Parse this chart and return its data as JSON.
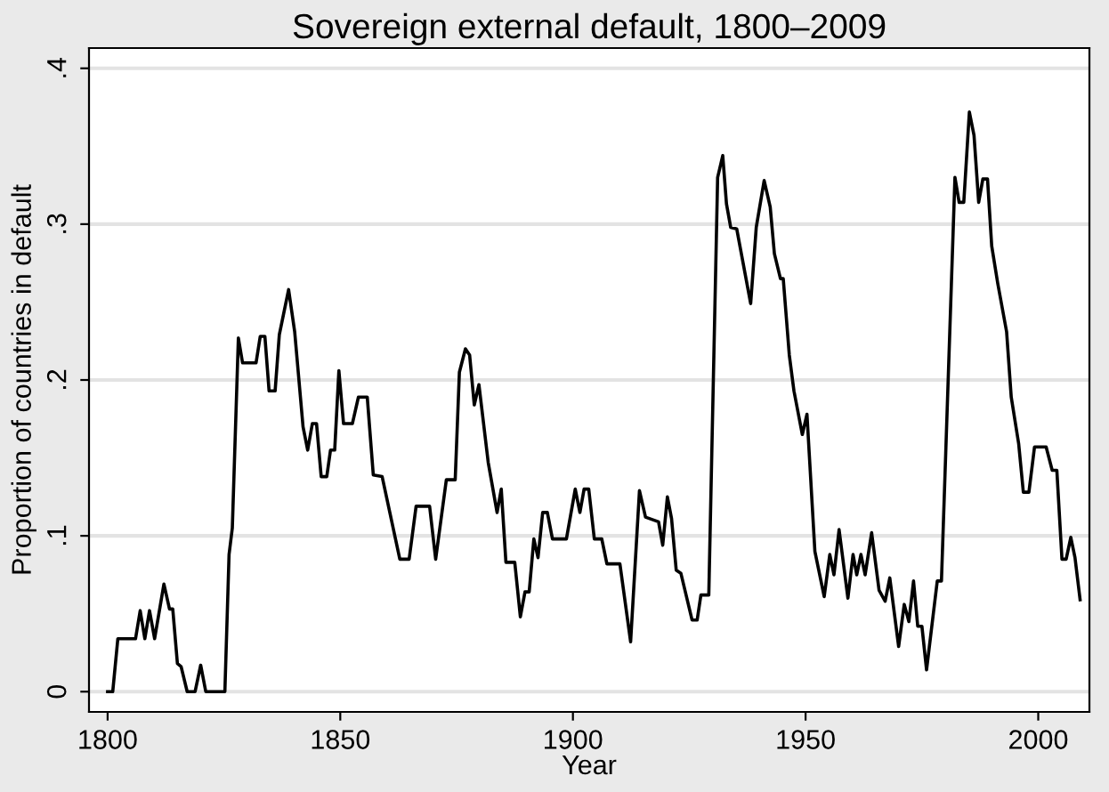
{
  "chart_data": {
    "type": "line",
    "title": "Sovereign external default, 1800–2009",
    "xlabel": "Year",
    "ylabel": "Proportion of countries in default",
    "series": [
      {
        "color": "#000000",
        "x": [
          1800,
          1801.1,
          1802.2,
          1806,
          1807,
          1808,
          1809,
          1810.1,
          1812.1,
          1813.3,
          1814,
          1815,
          1815.8,
          1817.1,
          1818.8,
          1820,
          1821.1,
          1825.2,
          1826.1,
          1826.8,
          1828.1,
          1829,
          1831.9,
          1832.8,
          1833.8,
          1834.7,
          1836,
          1836.9,
          1838.9,
          1840.2,
          1842,
          1843,
          1844,
          1844.9,
          1845.9,
          1847.1,
          1847.9,
          1848.8,
          1849.7,
          1850.7,
          1852.6,
          1853.9,
          1855.8,
          1857.1,
          1859,
          1862.8,
          1864.8,
          1866.3,
          1869.2,
          1870.5,
          1872.8,
          1874.7,
          1875.6,
          1876.9,
          1877.8,
          1878.8,
          1879.8,
          1881.8,
          1883.7,
          1884.6,
          1885.6,
          1887.5,
          1888.7,
          1889.7,
          1890.6,
          1891.6,
          1892.5,
          1893.5,
          1894.5,
          1895.6,
          1898.6,
          1900.5,
          1901.5,
          1902.4,
          1903.4,
          1904.6,
          1906.2,
          1907.3,
          1910.1,
          1912.4,
          1914.3,
          1915.6,
          1918.4,
          1919.3,
          1920.3,
          1921.2,
          1922.2,
          1923.2,
          1925.6,
          1926.7,
          1927.5,
          1929.2,
          1931.1,
          1932.2,
          1933,
          1933.9,
          1935.2,
          1938.2,
          1939.4,
          1941.1,
          1942.4,
          1943.3,
          1944.6,
          1945.2,
          1946.5,
          1947.5,
          1949.3,
          1950.3,
          1952,
          1954,
          1955.2,
          1956.1,
          1957.2,
          1959.1,
          1960.2,
          1961,
          1961.9,
          1962.8,
          1964.2,
          1965.8,
          1967.1,
          1968.1,
          1970,
          1971.2,
          1972.2,
          1973.2,
          1974.1,
          1975,
          1976,
          1978.3,
          1979.2,
          1982.1,
          1983,
          1984,
          1985.2,
          1986.2,
          1987.2,
          1988.1,
          1989.1,
          1990,
          1991.3,
          1993.2,
          1994.2,
          1995.8,
          1996.8,
          1998,
          1999.2,
          2001.7,
          2003,
          2004,
          2005.1,
          2006,
          2007,
          2007.9,
          2009
        ],
        "values": [
          0,
          0,
          0.034,
          0.034,
          0.052,
          0.034,
          0.052,
          0.034,
          0.069,
          0.053,
          0.053,
          0.018,
          0.016,
          0,
          0,
          0.017,
          0,
          0,
          0.088,
          0.105,
          0.227,
          0.211,
          0.211,
          0.228,
          0.228,
          0.193,
          0.193,
          0.229,
          0.258,
          0.231,
          0.17,
          0.155,
          0.172,
          0.172,
          0.138,
          0.138,
          0.155,
          0.155,
          0.206,
          0.172,
          0.172,
          0.189,
          0.189,
          0.139,
          0.138,
          0.085,
          0.085,
          0.119,
          0.119,
          0.085,
          0.136,
          0.136,
          0.205,
          0.22,
          0.216,
          0.184,
          0.197,
          0.147,
          0.115,
          0.13,
          0.083,
          0.083,
          0.048,
          0.064,
          0.064,
          0.098,
          0.086,
          0.115,
          0.115,
          0.098,
          0.098,
          0.13,
          0.115,
          0.13,
          0.13,
          0.098,
          0.098,
          0.082,
          0.082,
          0.032,
          0.129,
          0.112,
          0.109,
          0.094,
          0.125,
          0.111,
          0.078,
          0.076,
          0.046,
          0.046,
          0.062,
          0.062,
          0.33,
          0.344,
          0.313,
          0.298,
          0.297,
          0.249,
          0.298,
          0.328,
          0.311,
          0.281,
          0.265,
          0.265,
          0.216,
          0.193,
          0.165,
          0.178,
          0.09,
          0.061,
          0.088,
          0.075,
          0.104,
          0.06,
          0.088,
          0.075,
          0.088,
          0.075,
          0.102,
          0.065,
          0.058,
          0.073,
          0.029,
          0.056,
          0.045,
          0.071,
          0.042,
          0.042,
          0.014,
          0.071,
          0.071,
          0.33,
          0.314,
          0.314,
          0.372,
          0.357,
          0.314,
          0.329,
          0.329,
          0.286,
          0.262,
          0.231,
          0.189,
          0.159,
          0.128,
          0.128,
          0.157,
          0.157,
          0.142,
          0.142,
          0.085,
          0.085,
          0.099,
          0.086,
          0.059
        ]
      }
    ],
    "xlim": [
      1796,
      2011
    ],
    "xticks": [
      1800,
      1850,
      1900,
      1950,
      2000
    ],
    "ylim": [
      -0.013,
      0.413
    ],
    "yticks": [
      0,
      {
        "value": 0.1,
        "label": ".1"
      },
      {
        "value": 0.2,
        "label": ".2"
      },
      {
        "value": 0.3,
        "label": ".3"
      },
      {
        "value": 0.4,
        "label": ".4"
      }
    ],
    "grid": "y",
    "legend": false
  }
}
